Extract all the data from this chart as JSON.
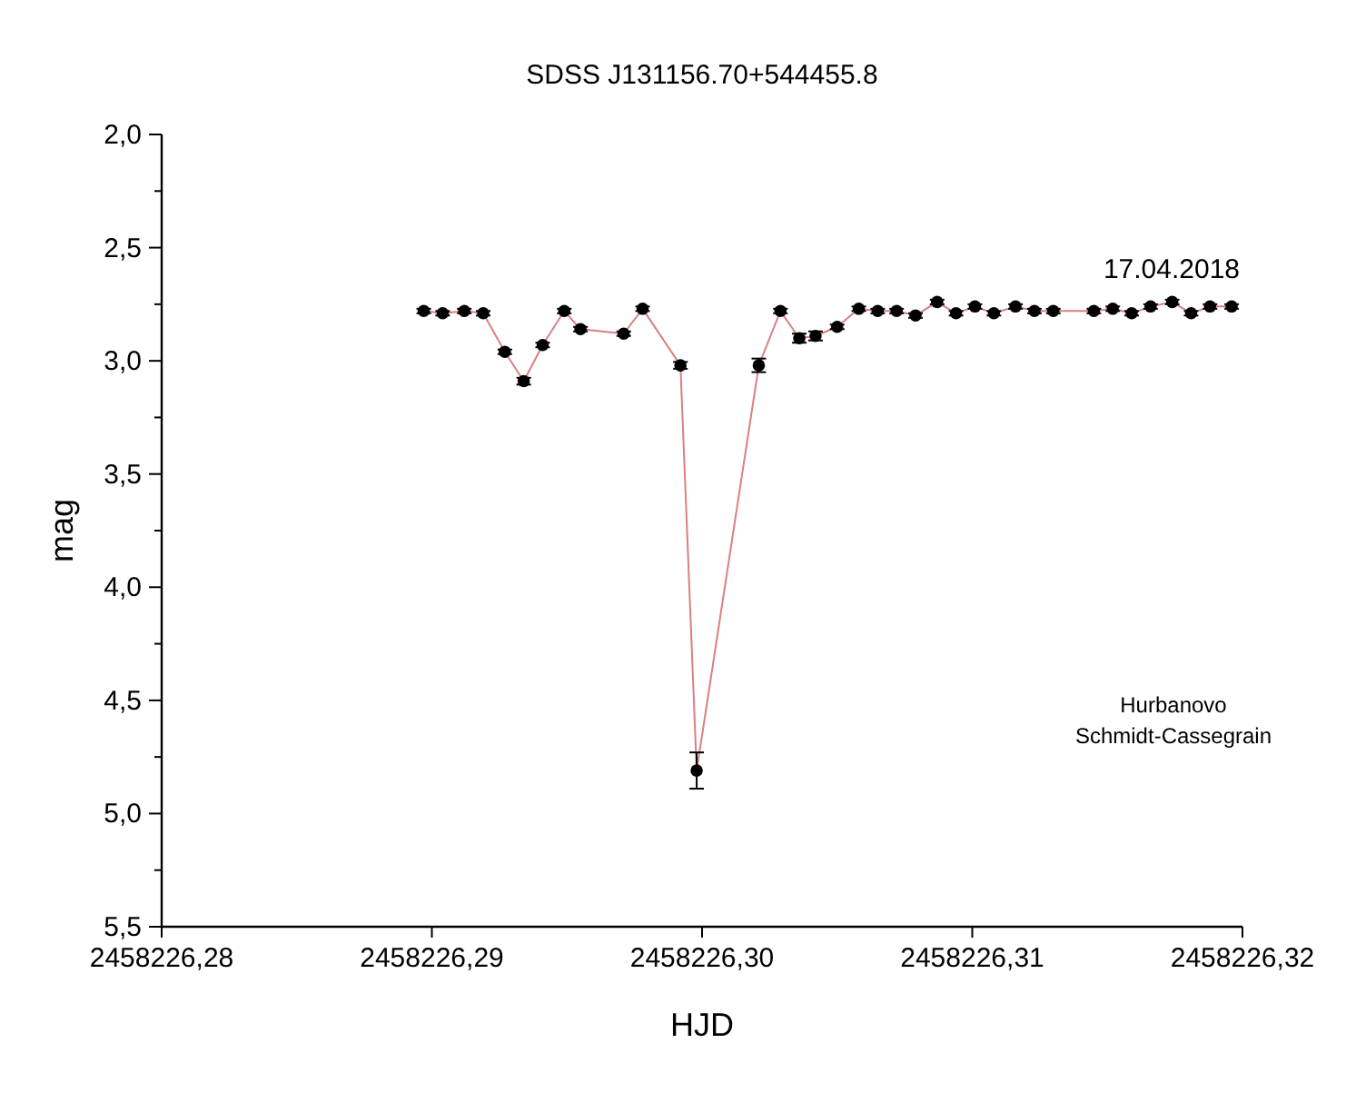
{
  "chart_data": {
    "type": "scatter",
    "title": "SDSS J131156.70+544455.8",
    "xlabel": "HJD",
    "ylabel": "mag",
    "annotations": [
      "17.04.2018",
      "Hurbanovo",
      "Schmidt-Cassegrain"
    ],
    "xlim": [
      2458226.28,
      2458226.32
    ],
    "xticks": [
      {
        "value": 2458226.28,
        "label": "2458226,28"
      },
      {
        "value": 2458226.29,
        "label": "2458226,29"
      },
      {
        "value": 2458226.3,
        "label": "2458226,30"
      },
      {
        "value": 2458226.31,
        "label": "2458226,31"
      },
      {
        "value": 2458226.32,
        "label": "2458226,32"
      }
    ],
    "ylim": [
      5.5,
      2.0
    ],
    "yticks": [
      {
        "value": 2.0,
        "label": "2,0"
      },
      {
        "value": 2.25,
        "label": null
      },
      {
        "value": 2.5,
        "label": "2,5"
      },
      {
        "value": 2.75,
        "label": null
      },
      {
        "value": 3.0,
        "label": "3,0"
      },
      {
        "value": 3.25,
        "label": null
      },
      {
        "value": 3.5,
        "label": "3,5"
      },
      {
        "value": 3.75,
        "label": null
      },
      {
        "value": 4.0,
        "label": "4,0"
      },
      {
        "value": 4.25,
        "label": null
      },
      {
        "value": 4.5,
        "label": "4,5"
      },
      {
        "value": 4.75,
        "label": null
      },
      {
        "value": 5.0,
        "label": "5,0"
      },
      {
        "value": 5.25,
        "label": null
      },
      {
        "value": 5.5,
        "label": "5,5"
      }
    ],
    "grid": false,
    "x": [
      2458226.2897,
      2458226.2904,
      2458226.2912,
      2458226.2919,
      2458226.2927,
      2458226.2934,
      2458226.2941,
      2458226.2949,
      2458226.2955,
      2458226.2971,
      2458226.2978,
      2458226.2992,
      2458226.2998,
      2458226.3021,
      2458226.3029,
      2458226.3036,
      2458226.3042,
      2458226.305,
      2458226.3058,
      2458226.3065,
      2458226.3072,
      2458226.3079,
      2458226.3087,
      2458226.3094,
      2458226.3101,
      2458226.3108,
      2458226.3116,
      2458226.3123,
      2458226.313,
      2458226.3145,
      2458226.3152,
      2458226.3159,
      2458226.3166,
      2458226.3174,
      2458226.3181,
      2458226.3188,
      2458226.3196
    ],
    "series": [
      {
        "type": "line",
        "color": "#d98080",
        "marker": "none",
        "line_style": "solid",
        "values": [
          2.78,
          2.79,
          2.78,
          2.79,
          2.96,
          3.09,
          2.93,
          2.78,
          2.86,
          2.88,
          2.77,
          3.02,
          4.81,
          3.02,
          2.78,
          2.9,
          2.89,
          2.85,
          2.77,
          2.78,
          2.78,
          2.8,
          2.74,
          2.79,
          2.76,
          2.79,
          2.76,
          2.78,
          2.78,
          2.78,
          2.77,
          2.79,
          2.76,
          2.74,
          2.79,
          2.76,
          2.76
        ]
      },
      {
        "color": "#000000",
        "marker": "circle",
        "values": [
          2.78,
          2.79,
          2.78,
          2.79,
          2.96,
          3.09,
          2.93,
          2.78,
          2.86,
          2.88,
          2.77,
          3.02,
          4.81,
          3.02,
          2.78,
          2.9,
          2.89,
          2.85,
          2.77,
          2.78,
          2.78,
          2.8,
          2.74,
          2.79,
          2.76,
          2.79,
          2.76,
          2.78,
          2.78,
          2.78,
          2.77,
          2.79,
          2.76,
          2.74,
          2.79,
          2.76,
          2.76
        ],
        "errors": [
          0.01,
          0.01,
          0.01,
          0.01,
          0.01,
          0.015,
          0.01,
          0.01,
          0.01,
          0.01,
          0.01,
          0.015,
          0.08,
          0.03,
          0.01,
          0.02,
          0.02,
          0.01,
          0.01,
          0.01,
          0.01,
          0.01,
          0.01,
          0.01,
          0.01,
          0.01,
          0.01,
          0.01,
          0.01,
          0.01,
          0.01,
          0.01,
          0.01,
          0.01,
          0.01,
          0.01,
          0.01
        ]
      }
    ]
  }
}
